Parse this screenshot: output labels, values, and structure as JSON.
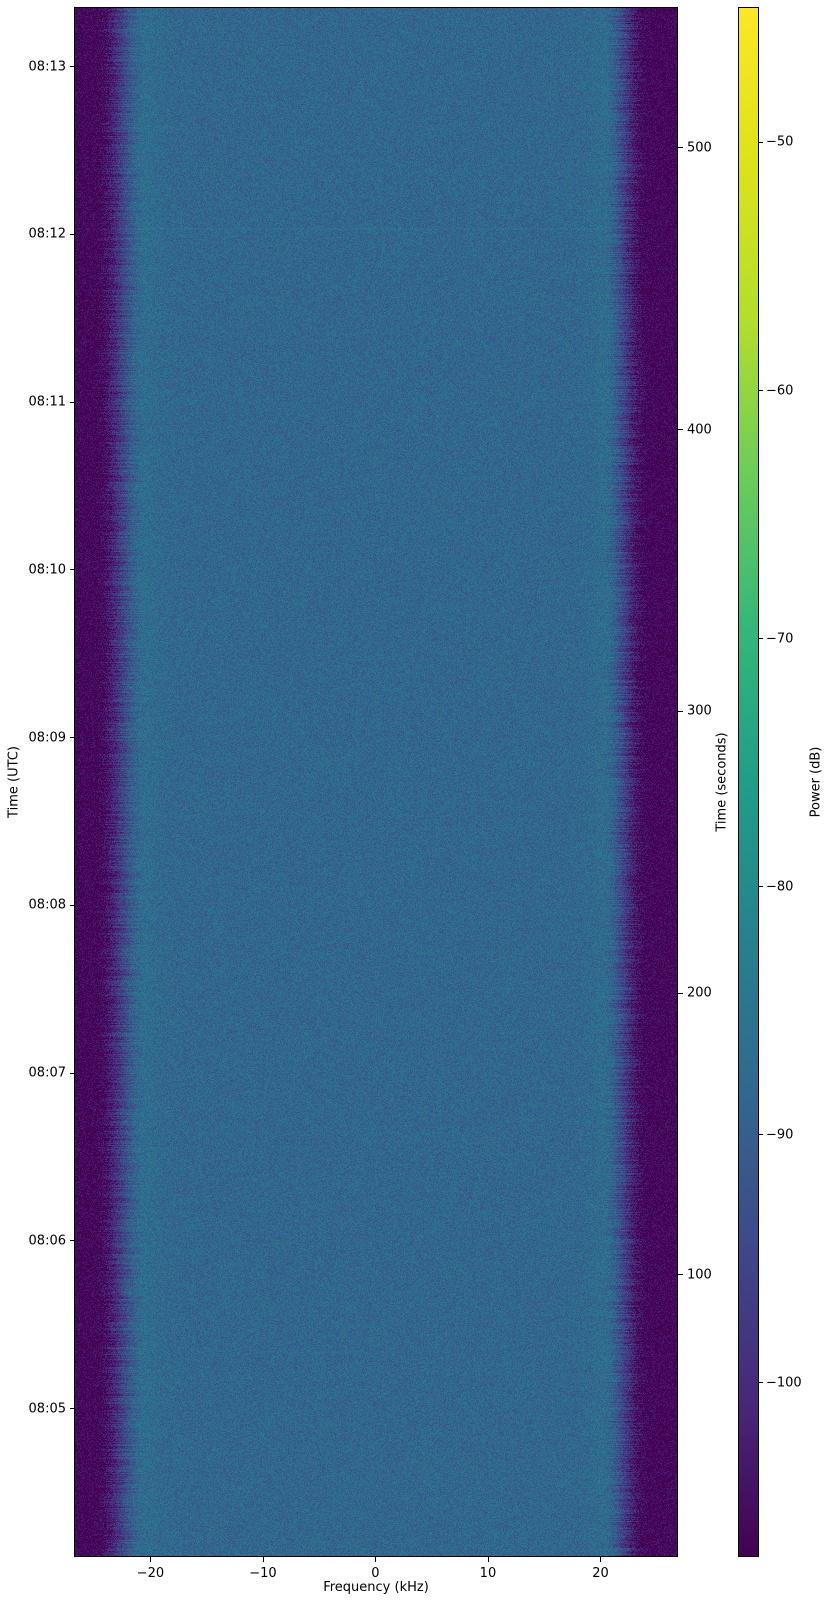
{
  "figure": {
    "background": "#ffffff",
    "text_color": "#000000"
  },
  "chart_data": {
    "type": "heatmap",
    "title": "",
    "xlabel": "Frequency (kHz)",
    "ylabel_left": "Time (UTC)",
    "ylabel_right": "Time (seconds)",
    "colorbar_label": "Power (dB)",
    "colormap": "viridis",
    "x_axis": {
      "lim": [
        -26.7,
        26.8
      ],
      "ticks": [
        -20,
        -10,
        0,
        10,
        20
      ],
      "tick_labels": [
        "−20",
        "−10",
        "0",
        "10",
        "20"
      ]
    },
    "y_axis_left": {
      "lim_seconds": [
        0,
        553.7
      ],
      "tick_seconds": [
        52.9,
        112.9,
        172.9,
        232.9,
        292.9,
        352.9,
        412.9,
        472.9,
        532.9
      ],
      "tick_labels": [
        "08:05",
        "08:06",
        "08:07",
        "08:08",
        "08:09",
        "08:10",
        "08:11",
        "08:12",
        "08:13"
      ]
    },
    "y_axis_right": {
      "lim": [
        0,
        549.5
      ],
      "ticks": [
        100,
        200,
        300,
        400,
        500
      ],
      "tick_labels": [
        "100",
        "200",
        "300",
        "400",
        "500"
      ]
    },
    "colorbar": {
      "vmin": -107.0,
      "vmax": -44.6,
      "ticks": [
        -50,
        -60,
        -70,
        -80,
        -90,
        -100
      ],
      "tick_labels": [
        "−50",
        "−60",
        "−70",
        "−80",
        "−90",
        "−100"
      ]
    },
    "signal": {
      "noise_floor_db": -106.5,
      "passband_db": -88.3,
      "rolloff_left_khz": [
        -25.0,
        -20.3
      ],
      "rolloff_right_khz": [
        20.1,
        24.3
      ],
      "edge_bump_db": 2.0,
      "edge_bump_center_khz": 21.5,
      "edge_bump_sigma_khz": 1.4,
      "noise_amplitude_db": 4.5,
      "bright_row_y_frac": 0.1421,
      "bright_row_boost_db": 1.5
    },
    "colors": {
      "viridis_stops": [
        [
          0.0,
          "#440154"
        ],
        [
          0.1,
          "#482878"
        ],
        [
          0.2,
          "#3e4989"
        ],
        [
          0.3,
          "#31688e"
        ],
        [
          0.4,
          "#26828e"
        ],
        [
          0.5,
          "#1f9e89"
        ],
        [
          0.6,
          "#35b779"
        ],
        [
          0.7,
          "#6dcd59"
        ],
        [
          0.8,
          "#b4de2c"
        ],
        [
          0.9,
          "#dce319"
        ],
        [
          1.0,
          "#fde725"
        ]
      ]
    }
  }
}
